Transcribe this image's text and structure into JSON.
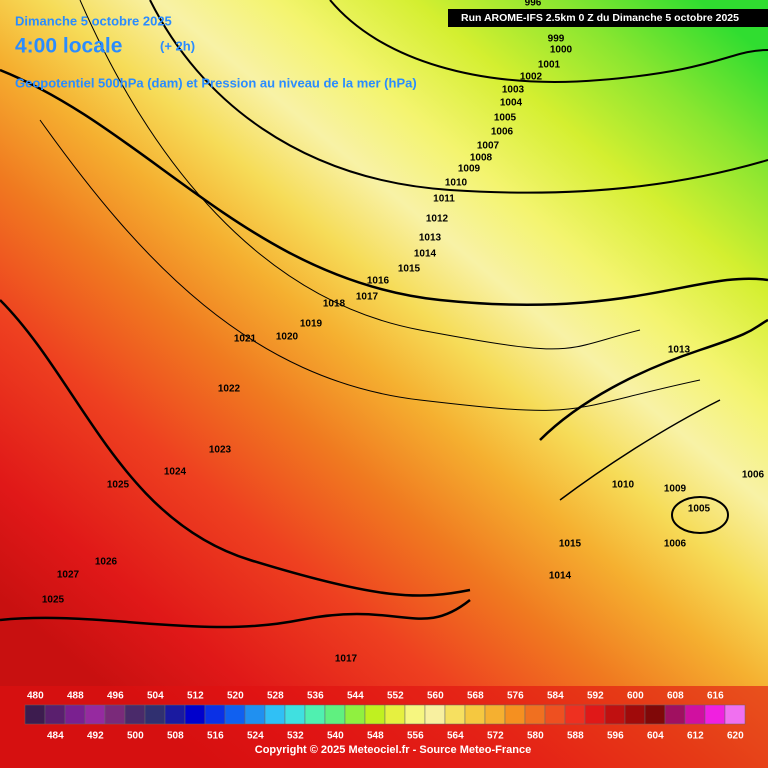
{
  "header": {
    "date": "Dimanche 5 octobre 2025",
    "time": "4:00 locale",
    "offset": "(+ 2h)",
    "subtitle": "Geopotentiel 500hPa (dam) et Pression au niveau de la mer (hPa)",
    "run": "Run AROME-IFS 2.5km 0 Z du Dimanche 5 octobre 2025"
  },
  "isobars": [
    996,
    999,
    1000,
    1001,
    1002,
    1003,
    1004,
    1005,
    1006,
    1007,
    1008,
    1009,
    1010,
    1011,
    1012,
    1013,
    1014,
    1015,
    1016,
    1017,
    1018,
    1019,
    1020,
    1021,
    1022,
    1023,
    1024,
    1025,
    1026,
    1027,
    1025,
    1017,
    1013,
    1010,
    1009,
    1005,
    1006,
    1006,
    1015,
    1014
  ],
  "scale": {
    "values": [
      480,
      484,
      488,
      492,
      496,
      500,
      504,
      508,
      512,
      516,
      520,
      524,
      528,
      532,
      536,
      540,
      544,
      548,
      552,
      556,
      560,
      564,
      568,
      572,
      576,
      580,
      584,
      588,
      592,
      596,
      600,
      604,
      608,
      612,
      616,
      620
    ],
    "colors": [
      "#3d1c4f",
      "#5a1f6e",
      "#7a2090",
      "#962aa0",
      "#7a2a7a",
      "#4a2a6a",
      "#303070",
      "#1a1aa0",
      "#0000cc",
      "#0a30e6",
      "#1060f0",
      "#2090f0",
      "#30c0f5",
      "#40e0e0",
      "#50f0b0",
      "#60f080",
      "#90f040",
      "#c0f020",
      "#e6f040",
      "#f6f680",
      "#f8f0a0",
      "#f6e060",
      "#f5c840",
      "#f5b030",
      "#f59020",
      "#f07020",
      "#ee5020",
      "#ee3020",
      "#e01818",
      "#c01010",
      "#a00a0a",
      "#800808",
      "#a01060",
      "#d010a0",
      "#f020e0",
      "#f070f0"
    ]
  },
  "copyright": "Copyright © 2025 Meteociel.fr - Source Meteo-France"
}
